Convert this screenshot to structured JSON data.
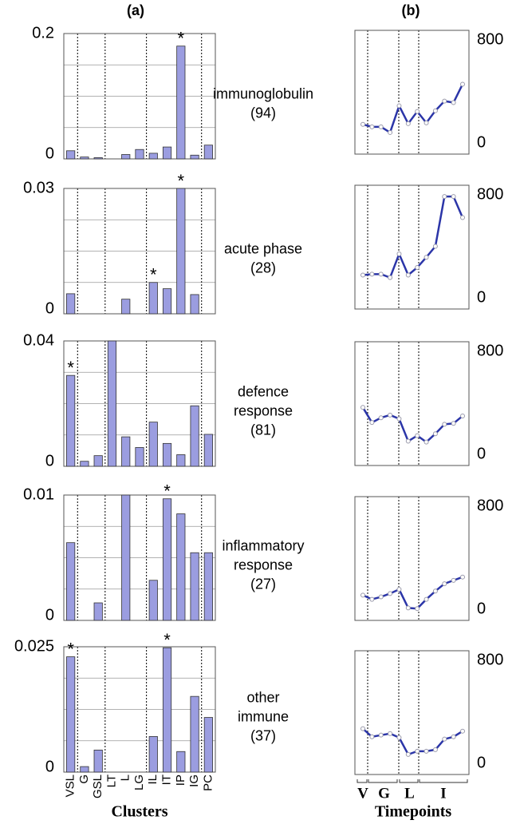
{
  "chart_data": [
    {
      "type": "bar",
      "title": "(a)",
      "xlabel": "Clusters",
      "color": "#9b9de0",
      "categories": [
        "VSL",
        "G",
        "GSL",
        "LT",
        "L",
        "LG",
        "IL",
        "IT",
        "IP",
        "IG",
        "PC"
      ],
      "rows": [
        {
          "ylim": [
            0,
            0.2
          ],
          "yticks": [
            0,
            0.2
          ],
          "values": [
            0.013,
            0.003,
            0.002,
            0,
            0.007,
            0.015,
            0.009,
            0.019,
            0.18,
            0.006,
            0.022
          ],
          "annotations": [
            {
              "text": "*",
              "category": "IP"
            }
          ]
        },
        {
          "ylim": [
            0,
            0.03
          ],
          "yticks": [
            0,
            0.03
          ],
          "values": [
            0.0048,
            0,
            0,
            0,
            0.0035,
            0,
            0.0075,
            0.006,
            0.03,
            0.0046,
            0
          ],
          "annotations": [
            {
              "text": "*",
              "category": "IL"
            },
            {
              "text": "*",
              "category": "IP"
            }
          ]
        },
        {
          "ylim": [
            0,
            0.04
          ],
          "yticks": [
            0,
            0.04
          ],
          "values": [
            0.029,
            0.0016,
            0.0034,
            0.04,
            0.0094,
            0.006,
            0.0141,
            0.0073,
            0.0037,
            0.0193,
            0.0102
          ],
          "annotations": [
            {
              "text": "*",
              "category": "VSL"
            }
          ]
        },
        {
          "ylim": [
            0,
            0.01
          ],
          "yticks": [
            0,
            0.01
          ],
          "values": [
            0.0062,
            0,
            0.0014,
            0,
            0.01,
            0,
            0.0032,
            0.0097,
            0.0085,
            0.0054,
            0.0054
          ],
          "annotations": [
            {
              "text": "*",
              "category": "IT"
            }
          ]
        },
        {
          "ylim": [
            0,
            0.025
          ],
          "yticks": [
            0,
            0.025
          ],
          "values": [
            0.023,
            0.0011,
            0.0044,
            0,
            0,
            0,
            0.0071,
            0.0248,
            0.0041,
            0.0151,
            0.0109
          ],
          "annotations": [
            {
              "text": "*",
              "category": "VSL"
            },
            {
              "text": "*",
              "category": "IT"
            }
          ]
        }
      ]
    },
    {
      "type": "line",
      "title": "(b)",
      "xlabel": "Timepoints",
      "color": "#2b35a8",
      "groups": [
        "V",
        "G",
        "L",
        "I"
      ],
      "categories": [
        null,
        null,
        null,
        null,
        null,
        null,
        null,
        null,
        null,
        null,
        null,
        null
      ],
      "rows": [
        {
          "ylim": [
            0,
            800
          ],
          "yticks": [
            0,
            800
          ],
          "values": [
            144,
            125,
            125,
            81,
            288,
            150,
            244,
            156,
            250,
            325,
            313,
            456
          ]
        },
        {
          "ylim": [
            0,
            800
          ],
          "yticks": [
            0,
            800
          ],
          "values": [
            177,
            184,
            184,
            157,
            341,
            177,
            236,
            315,
            400,
            787,
            787,
            623
          ]
        },
        {
          "ylim": [
            0,
            800
          ],
          "yticks": [
            0,
            800
          ],
          "values": [
            364,
            247,
            284,
            305,
            276,
            102,
            145,
            95,
            160,
            233,
            240,
            298
          ]
        },
        {
          "ylim": [
            0,
            800
          ],
          "yticks": [
            0,
            800
          ],
          "values": [
            109,
            77,
            96,
            122,
            154,
            10,
            5,
            77,
            141,
            198,
            224,
            250
          ]
        },
        {
          "ylim": [
            0,
            800
          ],
          "yticks": [
            0,
            800
          ],
          "values": [
            269,
            206,
            219,
            231,
            200,
            69,
            94,
            94,
            106,
            188,
            206,
            250
          ]
        }
      ]
    }
  ],
  "row_labels": [
    [
      "immunoglobulin",
      "(94)"
    ],
    [
      "acute phase",
      "(28)"
    ],
    [
      "defence",
      "response",
      "(81)"
    ],
    [
      "inflammatory",
      "response",
      "(27)"
    ],
    [
      "other",
      "immune",
      "(37)"
    ]
  ]
}
